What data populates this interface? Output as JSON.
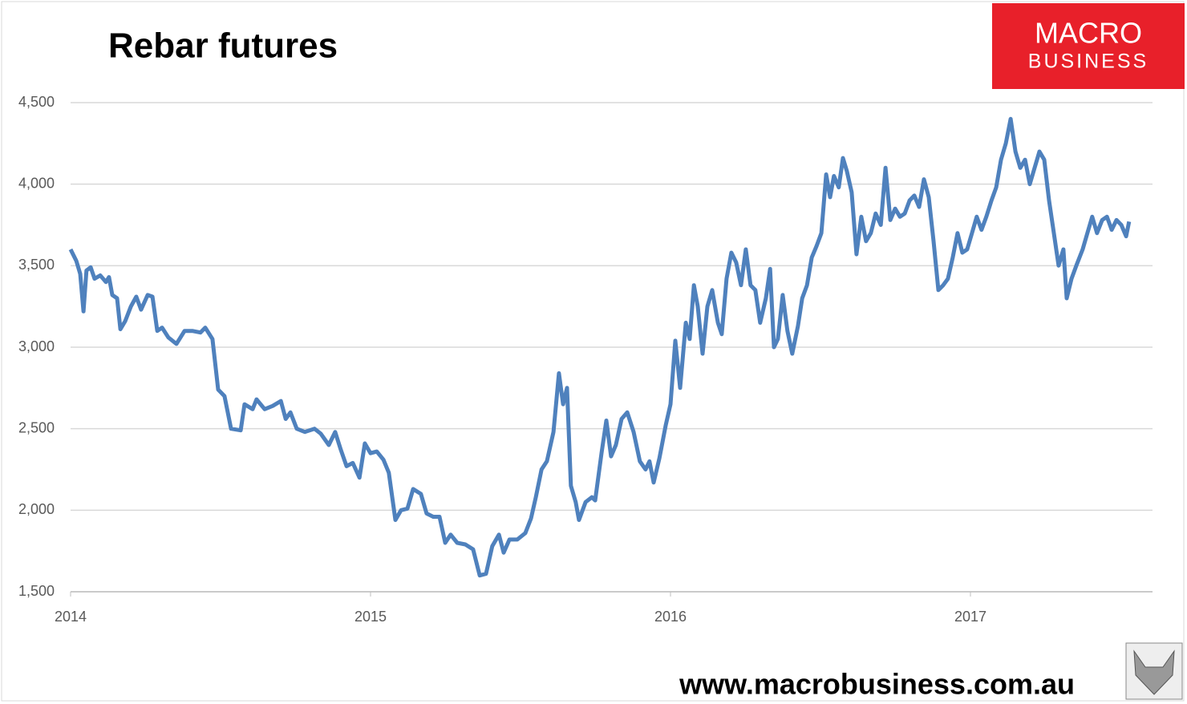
{
  "chart_data": {
    "type": "line",
    "title": "Rebar futures",
    "brand": {
      "line1": "MACRO",
      "line2": "BUSINESS"
    },
    "footer": "www.macrobusiness.com.au",
    "xlim": [
      2014,
      2017.607
    ],
    "xticks": [
      2014,
      2015,
      2016,
      2017
    ],
    "ylim": [
      1500,
      4500
    ],
    "yticks": [
      {
        "value": 1500,
        "label": "1,500"
      },
      {
        "value": 2000,
        "label": "2,000"
      },
      {
        "value": 2500,
        "label": "2,500"
      },
      {
        "value": 3000,
        "label": "3,000"
      },
      {
        "value": 3500,
        "label": "3,500"
      },
      {
        "value": 4000,
        "label": "4,000"
      },
      {
        "value": 4500,
        "label": "4,500"
      }
    ],
    "grid": true,
    "x": [
      2014.0,
      2014.019,
      2014.032,
      2014.043,
      2014.053,
      2014.067,
      2014.08,
      2014.099,
      2014.118,
      2014.128,
      2014.139,
      2014.155,
      2014.166,
      2014.182,
      2014.201,
      2014.219,
      2014.235,
      2014.257,
      2014.273,
      2014.289,
      2014.305,
      2014.326,
      2014.353,
      2014.38,
      2014.406,
      2014.433,
      2014.449,
      2014.473,
      2014.492,
      2014.513,
      2014.535,
      2014.567,
      2014.58,
      2014.607,
      2014.62,
      2014.647,
      2014.674,
      2014.701,
      2014.717,
      2014.733,
      2014.754,
      2014.781,
      2014.813,
      2014.834,
      2014.861,
      2014.882,
      2014.901,
      2014.92,
      2014.941,
      2014.963,
      2014.981,
      2015.0,
      2015.021,
      2015.043,
      2015.061,
      2015.083,
      2015.102,
      2015.123,
      2015.142,
      2015.168,
      2015.187,
      2015.209,
      2015.23,
      2015.249,
      2015.267,
      2015.289,
      2015.316,
      2015.342,
      2015.364,
      2015.385,
      2015.406,
      2015.428,
      2015.444,
      2015.463,
      2015.489,
      2015.516,
      2015.535,
      2015.551,
      2015.57,
      2015.588,
      2015.61,
      2015.628,
      2015.642,
      2015.655,
      2015.668,
      2015.684,
      2015.695,
      2015.717,
      2015.738,
      2015.749,
      2015.77,
      2015.786,
      2015.802,
      2015.818,
      2015.837,
      2015.856,
      2015.877,
      2015.898,
      2015.917,
      2015.93,
      2015.944,
      2015.963,
      2015.984,
      2016.0,
      2016.016,
      2016.032,
      2016.051,
      2016.064,
      2016.078,
      2016.091,
      2016.107,
      2016.123,
      2016.139,
      2016.158,
      2016.171,
      2016.187,
      2016.203,
      2016.219,
      2016.235,
      2016.251,
      2016.267,
      2016.283,
      2016.299,
      2016.318,
      2016.332,
      2016.345,
      2016.358,
      2016.374,
      2016.39,
      2016.406,
      2016.425,
      2016.439,
      2016.455,
      2016.471,
      2016.487,
      2016.503,
      2016.519,
      2016.532,
      2016.545,
      2016.561,
      2016.575,
      2016.588,
      2016.604,
      2016.62,
      2016.636,
      2016.652,
      2016.668,
      2016.684,
      2016.701,
      2016.717,
      2016.733,
      2016.749,
      2016.765,
      2016.781,
      2016.797,
      2016.813,
      2016.829,
      2016.845,
      2016.861,
      2016.877,
      2016.893,
      2016.909,
      2016.925,
      2016.941,
      2016.957,
      2016.973,
      2016.989,
      2017.005,
      2017.021,
      2017.037,
      2017.053,
      2017.07,
      2017.086,
      2017.102,
      2017.118,
      2017.134,
      2017.15,
      2017.166,
      2017.182,
      2017.198,
      2017.214,
      2017.23,
      2017.246,
      2017.262,
      2017.278,
      2017.294,
      2017.31,
      2017.321,
      2017.337,
      2017.353,
      2017.374,
      2017.39,
      2017.406,
      2017.422,
      2017.439,
      2017.455,
      2017.471,
      2017.487,
      2017.503,
      2017.519,
      2017.529
    ],
    "series": [
      {
        "name": "Rebar futures",
        "color": "#4f81bd",
        "values": [
          3600,
          3530,
          3450,
          3220,
          3470,
          3490,
          3420,
          3440,
          3400,
          3430,
          3320,
          3300,
          3110,
          3160,
          3250,
          3310,
          3230,
          3320,
          3310,
          3100,
          3120,
          3060,
          3020,
          3100,
          3100,
          3090,
          3120,
          3050,
          2740,
          2700,
          2500,
          2490,
          2650,
          2620,
          2680,
          2620,
          2640,
          2670,
          2560,
          2600,
          2500,
          2480,
          2500,
          2470,
          2400,
          2480,
          2370,
          2270,
          2290,
          2200,
          2410,
          2350,
          2360,
          2310,
          2230,
          1940,
          2000,
          2010,
          2130,
          2100,
          1980,
          1960,
          1960,
          1800,
          1850,
          1800,
          1790,
          1760,
          1600,
          1610,
          1780,
          1850,
          1740,
          1820,
          1820,
          1860,
          1950,
          2080,
          2250,
          2300,
          2480,
          2840,
          2650,
          2750,
          2150,
          2050,
          1940,
          2050,
          2080,
          2060,
          2350,
          2550,
          2330,
          2400,
          2560,
          2600,
          2480,
          2300,
          2250,
          2300,
          2170,
          2320,
          2520,
          2650,
          3040,
          2750,
          3150,
          3050,
          3380,
          3250,
          2960,
          3250,
          3350,
          3150,
          3080,
          3420,
          3580,
          3520,
          3380,
          3600,
          3380,
          3350,
          3150,
          3300,
          3480,
          3000,
          3050,
          3320,
          3100,
          2960,
          3130,
          3300,
          3380,
          3550,
          3620,
          3700,
          4060,
          3920,
          4050,
          3980,
          4160,
          4080,
          3950,
          3570,
          3800,
          3650,
          3700,
          3820,
          3750,
          4100,
          3780,
          3850,
          3800,
          3820,
          3900,
          3930,
          3860,
          4030,
          3920,
          3650,
          3350,
          3380,
          3420,
          3550,
          3700,
          3580,
          3600,
          3700,
          3800,
          3720,
          3800,
          3900,
          3980,
          4150,
          4250,
          4400,
          4200,
          4100,
          4150,
          4000,
          4100,
          4200,
          4150,
          3900,
          3700,
          3500,
          3600,
          3300,
          3420,
          3500,
          3600,
          3700,
          3800,
          3700,
          3780,
          3800,
          3720,
          3780,
          3750,
          3680,
          3770
        ]
      }
    ]
  }
}
